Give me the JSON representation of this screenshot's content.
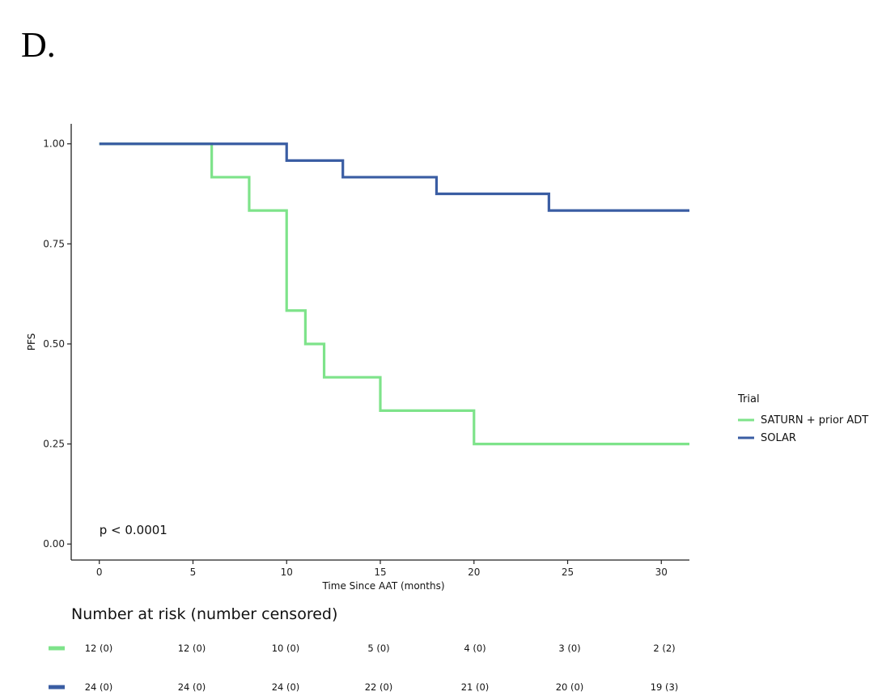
{
  "panel_label": "D.",
  "chart_data": {
    "type": "line",
    "subtype": "kaplan-meier step",
    "xlabel": "Time Since AAT (months)",
    "ylabel": "PFS",
    "xlim": [
      -1.5,
      31.5
    ],
    "ylim": [
      -0.04,
      1.05
    ],
    "x_ticks": [
      0,
      5,
      10,
      15,
      20,
      25,
      30
    ],
    "x_tick_labels": [
      "0",
      "5",
      "10",
      "15",
      "20",
      "25",
      "30"
    ],
    "y_ticks": [
      0.0,
      0.25,
      0.5,
      0.75,
      1.0
    ],
    "y_tick_labels": [
      "0.00",
      "0.25",
      "0.50",
      "0.75",
      "1.00"
    ],
    "grid": false,
    "annotation": "p < 0.0001",
    "legend": {
      "title": "Trial",
      "placement": "right"
    },
    "series": [
      {
        "name": "SATURN + prior ADT",
        "color": "#7ee38a",
        "steps": [
          [
            0,
            1.0
          ],
          [
            6,
            0.9167
          ],
          [
            8,
            0.8333
          ],
          [
            10,
            0.5833
          ],
          [
            11,
            0.5
          ],
          [
            12,
            0.4167
          ],
          [
            15,
            0.3333
          ],
          [
            20,
            0.25
          ]
        ],
        "x_end": 31.5
      },
      {
        "name": "SOLAR",
        "color": "#3a5da3",
        "steps": [
          [
            0,
            1.0
          ],
          [
            10,
            0.9583
          ],
          [
            13,
            0.9167
          ],
          [
            18,
            0.875
          ],
          [
            24,
            0.8333
          ]
        ],
        "x_end": 31.5
      }
    ],
    "risk_table": {
      "title": "Number at risk (number censored)",
      "times": [
        0,
        5,
        10,
        15,
        20,
        25,
        30
      ],
      "rows": [
        {
          "color": "#7ee38a",
          "values": [
            "12 (0)",
            "12 (0)",
            "10 (0)",
            "5 (0)",
            "4 (0)",
            "3 (0)",
            "2 (2)"
          ]
        },
        {
          "color": "#3a5da3",
          "values": [
            "24 (0)",
            "24 (0)",
            "24 (0)",
            "22 (0)",
            "21 (0)",
            "20 (0)",
            "19 (3)"
          ]
        }
      ]
    }
  }
}
